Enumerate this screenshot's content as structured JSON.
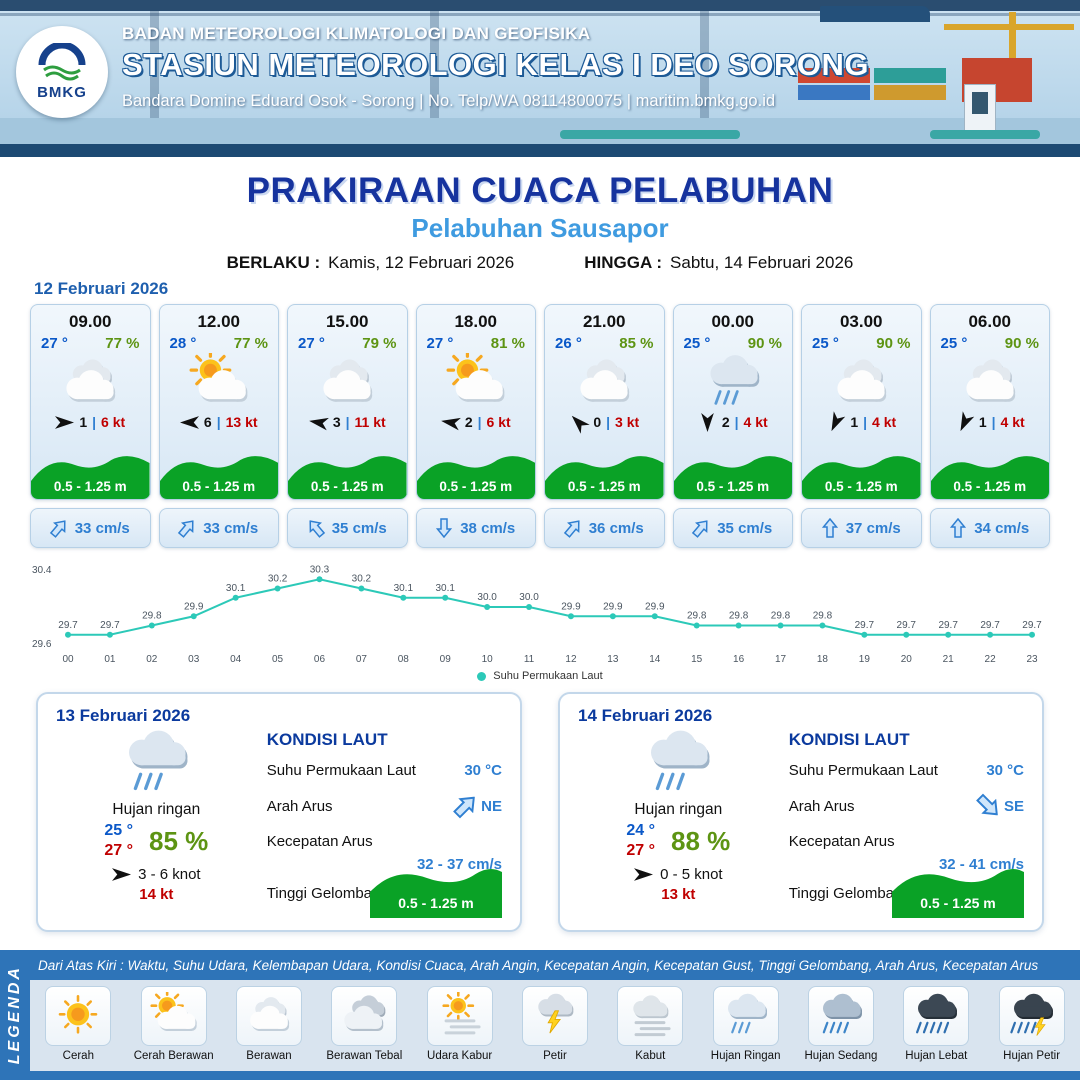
{
  "header": {
    "logo_text": "BMKG",
    "agency": "BADAN METEOROLOGI KLIMATOLOGI DAN GEOFISIKA",
    "station": "STASIUN METEOROLOGI KELAS I DEO SORONG",
    "contact": "Bandara Domine Eduard Osok - Sorong | No. Telp/WA 08114800075 | maritim.bmkg.go.id"
  },
  "title": {
    "main": "PRAKIRAAN CUACA PELABUHAN",
    "subtitle": "Pelabuhan Sausapor",
    "valid_from_label": "BERLAKU :",
    "valid_from": "Kamis, 12 Februari 2026",
    "valid_to_label": "HINGGA :",
    "valid_to": "Sabtu, 14 Februari 2026"
  },
  "forecast": {
    "date": "12 Februari 2026",
    "cards": [
      {
        "time": "09.00",
        "temp": "27 °",
        "humidity": "77 %",
        "icon": "berawan",
        "wind_speed": "1",
        "wind_deg": 0,
        "gust": "6 kt",
        "wave_height": "0.5 - 1.25 m",
        "current_speed": "33 cm/s",
        "current_deg": 40
      },
      {
        "time": "12.00",
        "temp": "28 °",
        "humidity": "77 %",
        "icon": "cerah-berawan",
        "wind_speed": "6",
        "wind_deg": 180,
        "gust": "13 kt",
        "wave_height": "0.5 - 1.25 m",
        "current_speed": "33 cm/s",
        "current_deg": 40
      },
      {
        "time": "15.00",
        "temp": "27 °",
        "humidity": "79 %",
        "icon": "berawan",
        "wind_speed": "3",
        "wind_deg": 190,
        "gust": "11 kt",
        "wave_height": "0.5 - 1.25 m",
        "current_speed": "35 cm/s",
        "current_deg": 320
      },
      {
        "time": "18.00",
        "temp": "27 °",
        "humidity": "81 %",
        "icon": "cerah-berawan",
        "wind_speed": "2",
        "wind_deg": 190,
        "gust": "6 kt",
        "wave_height": "0.5 - 1.25 m",
        "current_speed": "38 cm/s",
        "current_deg": 180
      },
      {
        "time": "21.00",
        "temp": "26 °",
        "humidity": "85 %",
        "icon": "berawan",
        "wind_speed": "0",
        "wind_deg": 225,
        "gust": "3 kt",
        "wave_height": "0.5 - 1.25 m",
        "current_speed": "36 cm/s",
        "current_deg": 40
      },
      {
        "time": "00.00",
        "temp": "25 °",
        "humidity": "90 %",
        "icon": "hujan-ringan",
        "wind_speed": "2",
        "wind_deg": 90,
        "gust": "4 kt",
        "wave_height": "0.5 - 1.25 m",
        "current_speed": "35 cm/s",
        "current_deg": 40
      },
      {
        "time": "03.00",
        "temp": "25 °",
        "humidity": "90 %",
        "icon": "berawan",
        "wind_speed": "1",
        "wind_deg": 115,
        "gust": "4 kt",
        "wave_height": "0.5 - 1.25 m",
        "current_speed": "37 cm/s",
        "current_deg": 0
      },
      {
        "time": "06.00",
        "temp": "25 °",
        "humidity": "90 %",
        "icon": "berawan",
        "wind_speed": "1",
        "wind_deg": 115,
        "gust": "4 kt",
        "wave_height": "0.5 - 1.25 m",
        "current_speed": "34 cm/s",
        "current_deg": 0
      }
    ]
  },
  "chart_data": {
    "type": "line",
    "title": "Suhu Permukaan Laut",
    "legend": "Suhu Permukaan Laut",
    "legend_position": "bottom",
    "grid": false,
    "x": [
      "00",
      "01",
      "02",
      "03",
      "04",
      "05",
      "06",
      "07",
      "08",
      "09",
      "10",
      "11",
      "12",
      "13",
      "14",
      "15",
      "16",
      "17",
      "18",
      "19",
      "20",
      "21",
      "22",
      "23"
    ],
    "values": [
      29.7,
      29.7,
      29.8,
      29.9,
      30.1,
      30.2,
      30.3,
      30.2,
      30.1,
      30.1,
      30.0,
      30.0,
      29.9,
      29.9,
      29.9,
      29.8,
      29.8,
      29.8,
      29.8,
      29.7,
      29.7,
      29.7,
      29.7,
      29.7
    ],
    "xlabel": "",
    "ylabel": "",
    "ylim": [
      29.6,
      30.4
    ],
    "line_color": "#2cc9b8"
  },
  "daily": [
    {
      "date": "13 Februari 2026",
      "condition": "Hujan ringan",
      "icon": "hujan-ringan",
      "temp_min": "25 °",
      "temp_max": "27 °",
      "humidity": "85 %",
      "wind_range": "3 - 6 knot",
      "wind_deg": 0,
      "gust": "14 kt",
      "sea_title": "KONDISI LAUT",
      "sst_label": "Suhu Permukaan Laut",
      "sst": "30 °C",
      "current_dir_label": "Arah Arus",
      "current_dir": "NE",
      "current_deg": 45,
      "current_speed_label": "Kecepatan Arus",
      "current_speed": "32 - 37 cm/s",
      "wave_label": "Tinggi Gelombang",
      "wave_height": "0.5 - 1.25 m"
    },
    {
      "date": "14 Februari 2026",
      "condition": "Hujan ringan",
      "icon": "hujan-ringan",
      "temp_min": "24 °",
      "temp_max": "27 °",
      "humidity": "88 %",
      "wind_range": "0 - 5 knot",
      "wind_deg": 0,
      "gust": "13 kt",
      "sea_title": "KONDISI LAUT",
      "sst_label": "Suhu Permukaan Laut",
      "sst": "30 °C",
      "current_dir_label": "Arah Arus",
      "current_dir": "SE",
      "current_deg": 135,
      "current_speed_label": "Kecepatan Arus",
      "current_speed": "32 - 41 cm/s",
      "wave_label": "Tinggi Gelombang",
      "wave_height": "0.5 - 1.25 m"
    }
  ],
  "legend": {
    "vertical_label": "LEGENDA",
    "description": "Dari Atas Kiri : Waktu, Suhu Udara, Kelembapan Udara, Kondisi Cuaca, Arah Angin, Kecepatan Angin, Kecepatan Gust, Tinggi Gelombang, Arah Arus, Kecepatan Arus",
    "items": [
      {
        "label": "Cerah",
        "icon": "cerah"
      },
      {
        "label": "Cerah Berawan",
        "icon": "cerah-berawan"
      },
      {
        "label": "Berawan",
        "icon": "berawan"
      },
      {
        "label": "Berawan Tebal",
        "icon": "berawan-tebal"
      },
      {
        "label": "Udara Kabur",
        "icon": "udara-kabur"
      },
      {
        "label": "Petir",
        "icon": "petir"
      },
      {
        "label": "Kabut",
        "icon": "kabut"
      },
      {
        "label": "Hujan Ringan",
        "icon": "hujan-ringan"
      },
      {
        "label": "Hujan Sedang",
        "icon": "hujan-sedang"
      },
      {
        "label": "Hujan Lebat",
        "icon": "hujan-lebat"
      },
      {
        "label": "Hujan Petir",
        "icon": "hujan-petir"
      }
    ]
  },
  "colors": {
    "title_blue": "#16339e",
    "subtitle_blue": "#3f9be0",
    "wave_green": "#0aa226",
    "humidity_green": "#5d9413",
    "temp_blue": "#0a58c8",
    "alert_red": "#c00000",
    "current_blue": "#2f7fd1",
    "chart_teal": "#2cc9b8",
    "legend_bar_blue": "#2e74b8"
  }
}
